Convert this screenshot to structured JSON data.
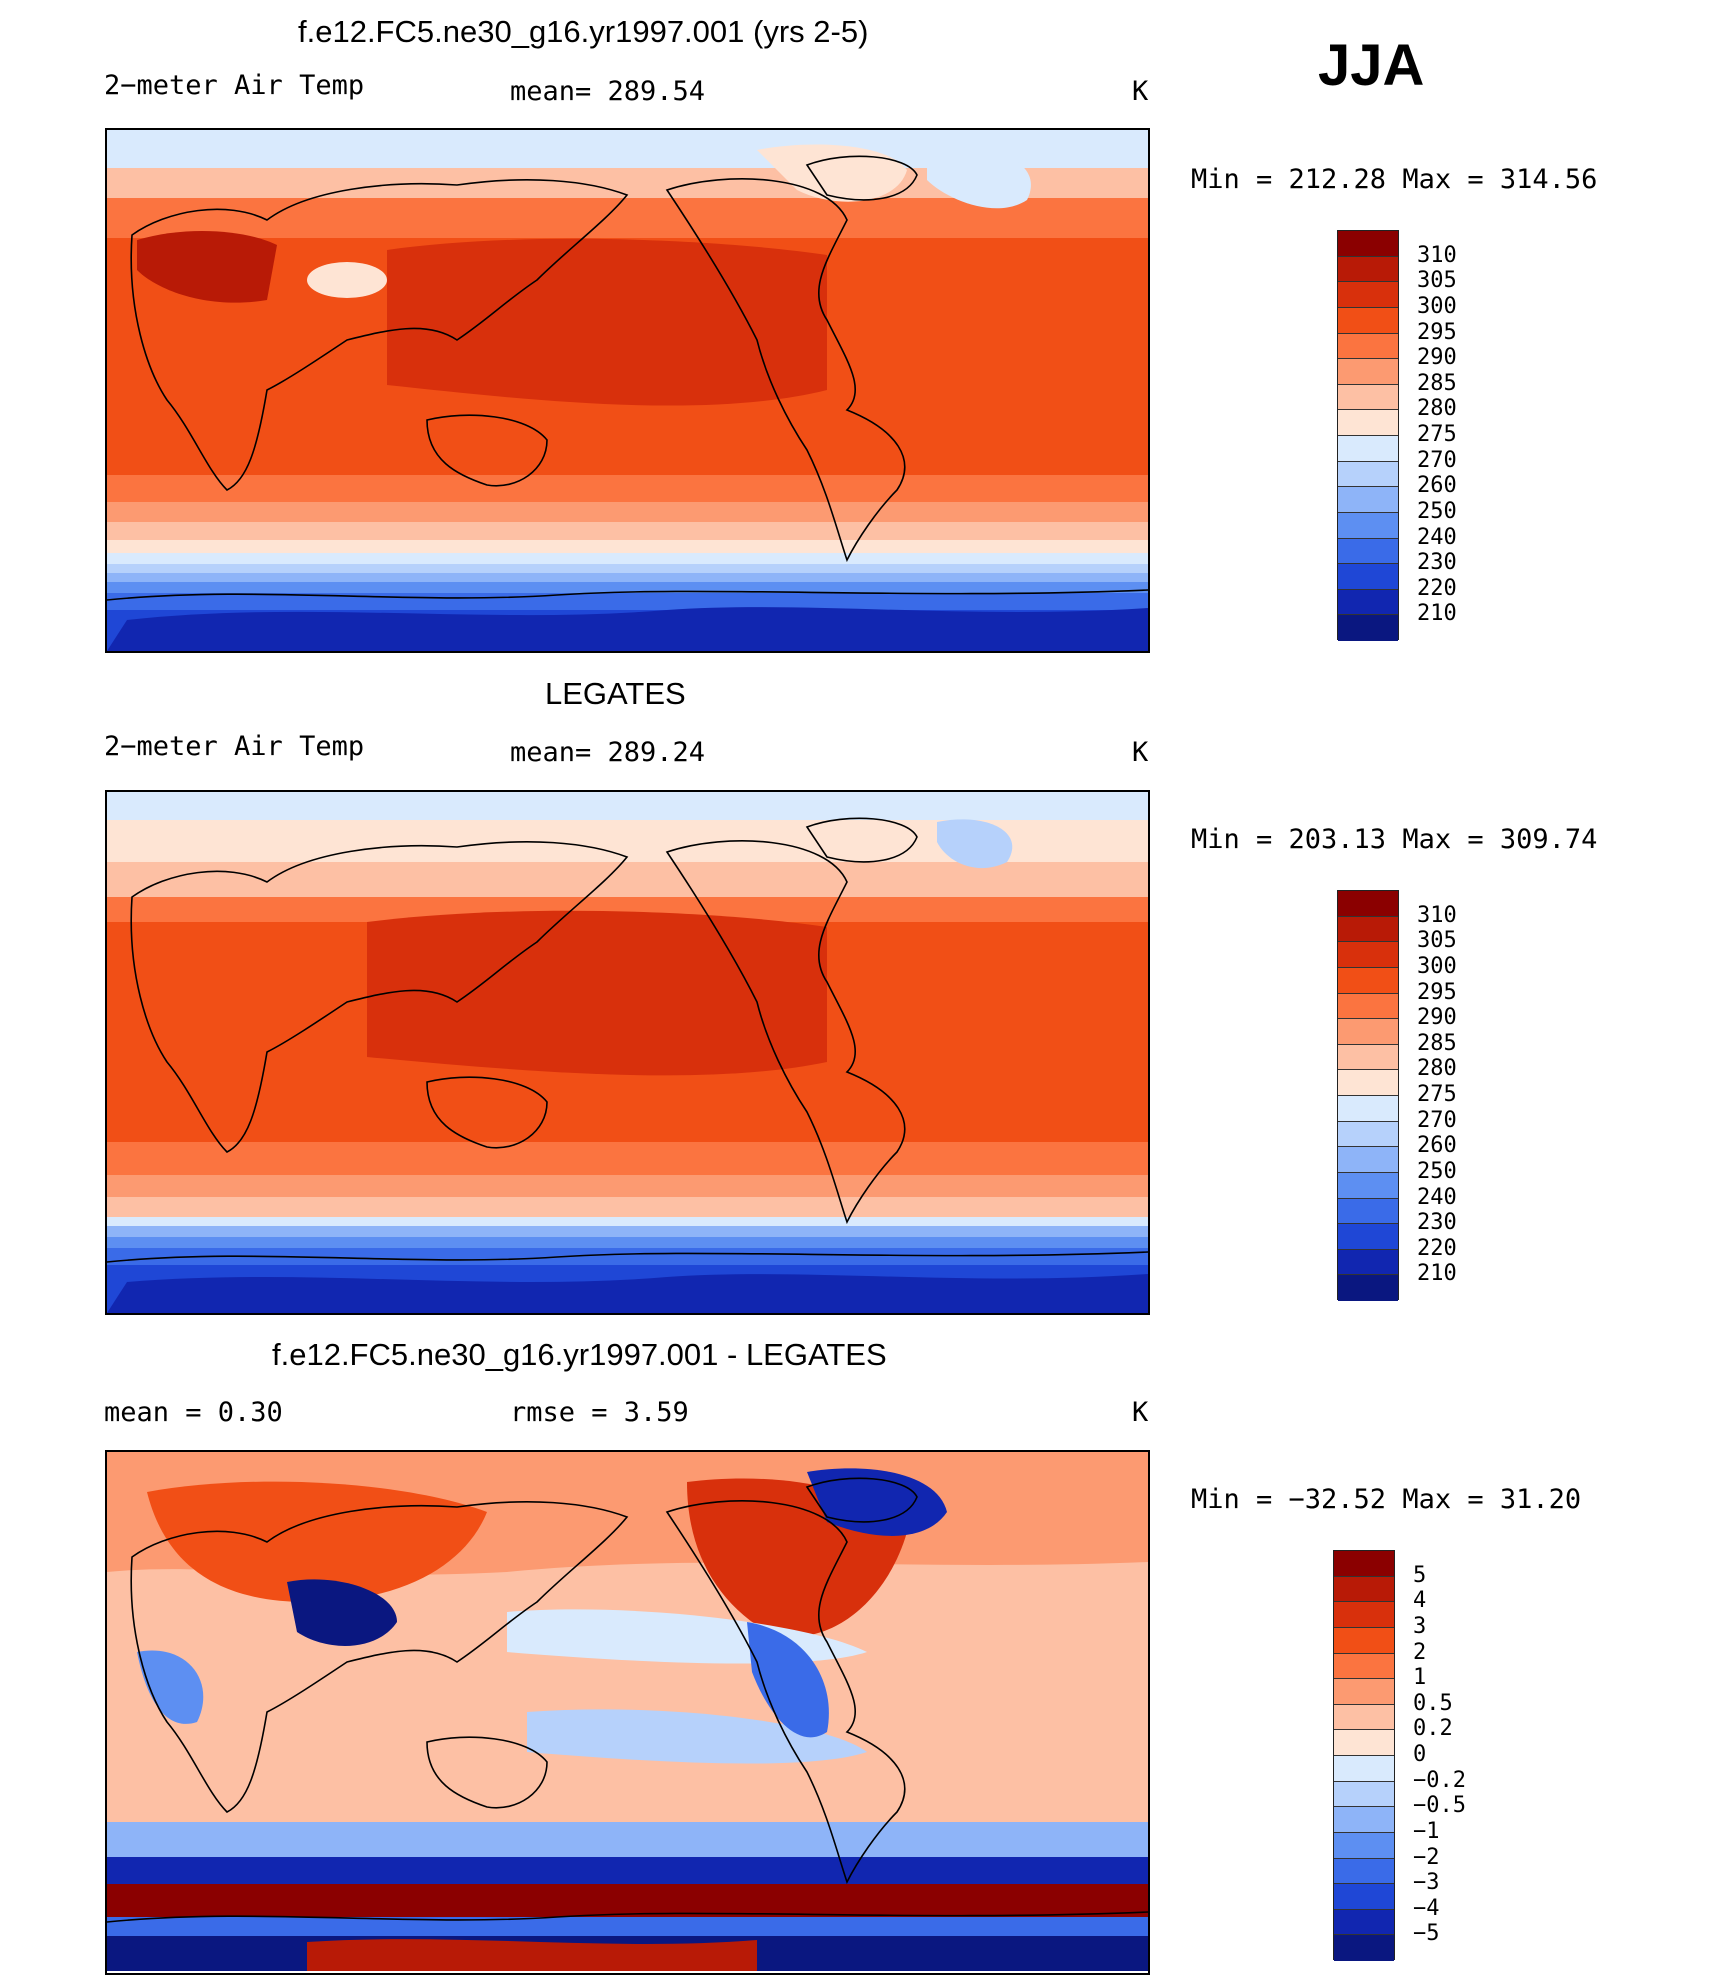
{
  "season": "JJA",
  "panels": [
    {
      "id": "model",
      "title": "f.e12.FC5.ne30_g16.yr1997.001 (yrs 2-5)",
      "left_label": "2−meter Air Temp",
      "center_label": "mean=  289.54",
      "units": "K",
      "range": "Min  =  212.28  Max  =  314.56",
      "colorbar": {
        "labels": [
          "310",
          "305",
          "300",
          "295",
          "290",
          "285",
          "280",
          "275",
          "270",
          "260",
          "250",
          "240",
          "230",
          "220",
          "210"
        ],
        "colors": [
          "#8b0000",
          "#b81a06",
          "#d8300c",
          "#f14f16",
          "#fb7440",
          "#fc9a71",
          "#fdc0a4",
          "#fee4d4",
          "#d9eafd",
          "#b6d1fb",
          "#8eb4f8",
          "#5d8ff2",
          "#3a6be8",
          "#1f47d6",
          "#1126b0",
          "#0a1780"
        ]
      },
      "field_stats": {
        "mean": 289.54,
        "min": 212.28,
        "max": 314.56
      }
    },
    {
      "id": "obs",
      "title": "LEGATES",
      "left_label": "2−meter Air Temp",
      "center_label": "mean=  289.24",
      "units": "K",
      "range": "Min  =  203.13  Max  =  309.74",
      "colorbar": {
        "labels": [
          "310",
          "305",
          "300",
          "295",
          "290",
          "285",
          "280",
          "275",
          "270",
          "260",
          "250",
          "240",
          "230",
          "220",
          "210"
        ],
        "colors": [
          "#8b0000",
          "#b81a06",
          "#d8300c",
          "#f14f16",
          "#fb7440",
          "#fc9a71",
          "#fdc0a4",
          "#fee4d4",
          "#d9eafd",
          "#b6d1fb",
          "#8eb4f8",
          "#5d8ff2",
          "#3a6be8",
          "#1f47d6",
          "#1126b0",
          "#0a1780"
        ]
      },
      "field_stats": {
        "mean": 289.24,
        "min": 203.13,
        "max": 309.74
      }
    },
    {
      "id": "diff",
      "title": "f.e12.FC5.ne30_g16.yr1997.001 - LEGATES",
      "left_label": "mean =     0.30",
      "center_label": "rmse =     3.59",
      "units": "K",
      "range": "Min  =  −32.52  Max  =   31.20",
      "colorbar": {
        "labels": [
          "5",
          "4",
          "3",
          "2",
          "1",
          "0.5",
          "0.2",
          "0",
          "−0.2",
          "−0.5",
          "−1",
          "−2",
          "−3",
          "−4",
          "−5"
        ],
        "colors": [
          "#8b0000",
          "#b81a06",
          "#d8300c",
          "#f14f16",
          "#fb7440",
          "#fc9a71",
          "#fdc0a4",
          "#fee4d4",
          "#d9eafd",
          "#b6d1fb",
          "#8eb4f8",
          "#5d8ff2",
          "#3a6be8",
          "#1f47d6",
          "#1126b0",
          "#0a1780"
        ]
      },
      "field_stats": {
        "mean": 0.3,
        "rmse": 3.59,
        "min": -32.52,
        "max": 31.2
      }
    }
  ]
}
